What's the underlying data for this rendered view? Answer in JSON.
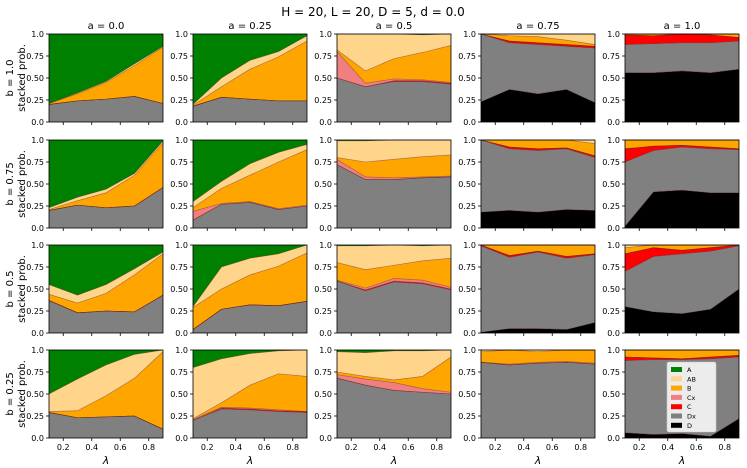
{
  "figure": {
    "suptitle": "H = 20, L = 20,     D = 5, d = 0.0",
    "col_titles": [
      "a = 0.0",
      "a = 0.25",
      "a = 0.5",
      "a = 0.75",
      "a = 1.0"
    ],
    "row_titles": [
      "b = 1.0",
      "b = 0.75",
      "b = 0.5",
      "b = 0.25"
    ],
    "ylabel": "stacked prob.",
    "xlabel": "λ",
    "xticks": [
      "0.2",
      "0.4",
      "0.6",
      "0.8"
    ],
    "yticks": [
      "0.0",
      "0.25",
      "0.50",
      "0.75",
      "1.0"
    ]
  },
  "legend": {
    "location": "bottom-right panel (b = 0.25, a = 1.0)",
    "entries": [
      {
        "label": "A",
        "color": "#008000"
      },
      {
        "label": "AB",
        "color": "#FFD48B"
      },
      {
        "label": "B",
        "color": "#FFA500"
      },
      {
        "label": "Cx",
        "color": "#F08080"
      },
      {
        "label": "C",
        "color": "#FF0000"
      },
      {
        "label": "Dx",
        "color": "#808080"
      },
      {
        "label": "D",
        "color": "#000000"
      }
    ]
  },
  "chart_data": {
    "type": "area",
    "stacking": "cumulative, bottom to top: D, Dx, C, Cx, B, AB, A",
    "x": [
      0.1,
      0.3,
      0.5,
      0.7,
      0.9
    ],
    "xlim": [
      0.1,
      0.9
    ],
    "ylim": [
      0,
      1
    ],
    "series_order": [
      "D",
      "Dx",
      "C",
      "Cx",
      "B",
      "AB",
      "A"
    ],
    "colors": {
      "A": "#008000",
      "AB": "#FFD48B",
      "B": "#FFA500",
      "Cx": "#F08080",
      "C": "#FF0000",
      "Dx": "#808080",
      "D": "#000000"
    },
    "panels": [
      {
        "row": "b = 1.0",
        "col": "a = 0.0",
        "cum": {
          "D": [
            0,
            0,
            0,
            0,
            0
          ],
          "Dx": [
            0.2,
            0.24,
            0.26,
            0.29,
            0.21
          ],
          "C": [
            0.2,
            0.24,
            0.26,
            0.29,
            0.21
          ],
          "Cx": [
            0.2,
            0.24,
            0.26,
            0.29,
            0.21
          ],
          "B": [
            0.21,
            0.32,
            0.45,
            0.64,
            0.85
          ],
          "AB": [
            0.21,
            0.33,
            0.46,
            0.66,
            0.86
          ]
        }
      },
      {
        "row": "b = 1.0",
        "col": "a = 0.25",
        "cum": {
          "D": [
            0,
            0,
            0,
            0,
            0
          ],
          "Dx": [
            0.18,
            0.28,
            0.26,
            0.24,
            0.24
          ],
          "C": [
            0.18,
            0.28,
            0.26,
            0.24,
            0.24
          ],
          "Cx": [
            0.18,
            0.28,
            0.26,
            0.24,
            0.24
          ],
          "B": [
            0.19,
            0.4,
            0.6,
            0.74,
            0.92
          ],
          "AB": [
            0.2,
            0.5,
            0.7,
            0.8,
            0.98
          ]
        }
      },
      {
        "row": "b = 1.0",
        "col": "a = 0.5",
        "cum": {
          "D": [
            0,
            0,
            0,
            0,
            0
          ],
          "Dx": [
            0.5,
            0.4,
            0.46,
            0.46,
            0.43
          ],
          "C": [
            0.5,
            0.4,
            0.47,
            0.47,
            0.44
          ],
          "Cx": [
            0.8,
            0.44,
            0.49,
            0.48,
            0.45
          ],
          "B": [
            0.82,
            0.58,
            0.72,
            0.79,
            0.87
          ],
          "AB": [
            1,
            1,
            1,
            0.99,
            1
          ]
        }
      },
      {
        "row": "b = 1.0",
        "col": "a = 0.75",
        "cum": {
          "D": [
            0.23,
            0.37,
            0.32,
            0.37,
            0.22
          ],
          "Dx": [
            1,
            0.9,
            0.88,
            0.86,
            0.84
          ],
          "C": [
            1,
            0.92,
            0.9,
            0.88,
            0.86
          ],
          "Cx": [
            1,
            0.92,
            0.9,
            0.88,
            0.86
          ],
          "B": [
            1,
            0.98,
            0.97,
            0.93,
            0.88
          ],
          "AB": [
            1,
            1,
            1,
            1,
            1
          ]
        }
      },
      {
        "row": "b = 1.0",
        "col": "a = 1.0",
        "cum": {
          "D": [
            0.56,
            0.56,
            0.58,
            0.56,
            0.6
          ],
          "Dx": [
            0.88,
            0.89,
            0.9,
            0.9,
            0.92
          ],
          "C": [
            0.99,
            0.98,
            1,
            0.99,
            0.96
          ],
          "Cx": [
            0.99,
            0.98,
            1,
            0.99,
            0.96
          ],
          "B": [
            1,
            1,
            1,
            1,
            1
          ],
          "AB": [
            1,
            1,
            1,
            1,
            1
          ]
        }
      },
      {
        "row": "b = 0.75",
        "col": "a = 0.0",
        "cum": {
          "D": [
            0,
            0,
            0,
            0,
            0
          ],
          "Dx": [
            0.2,
            0.26,
            0.23,
            0.25,
            0.46
          ],
          "C": [
            0.2,
            0.26,
            0.23,
            0.25,
            0.46
          ],
          "Cx": [
            0.2,
            0.26,
            0.23,
            0.25,
            0.46
          ],
          "B": [
            0.21,
            0.31,
            0.4,
            0.6,
            0.97
          ],
          "AB": [
            0.23,
            0.35,
            0.44,
            0.62,
            0.99
          ]
        }
      },
      {
        "row": "b = 0.75",
        "col": "a = 0.25",
        "cum": {
          "D": [
            0,
            0,
            0,
            0,
            0
          ],
          "Dx": [
            0.09,
            0.27,
            0.29,
            0.21,
            0.25
          ],
          "C": [
            0.09,
            0.27,
            0.29,
            0.21,
            0.25
          ],
          "Cx": [
            0.19,
            0.28,
            0.3,
            0.22,
            0.26
          ],
          "B": [
            0.23,
            0.45,
            0.6,
            0.75,
            0.89
          ],
          "AB": [
            0.3,
            0.53,
            0.73,
            0.86,
            0.95
          ]
        }
      },
      {
        "row": "b = 0.75",
        "col": "a = 0.5",
        "cum": {
          "D": [
            0,
            0,
            0,
            0,
            0
          ],
          "Dx": [
            0.72,
            0.55,
            0.55,
            0.57,
            0.58
          ],
          "C": [
            0.72,
            0.55,
            0.55,
            0.57,
            0.58
          ],
          "Cx": [
            0.78,
            0.58,
            0.57,
            0.58,
            0.59
          ],
          "B": [
            0.8,
            0.75,
            0.78,
            0.81,
            0.83
          ],
          "AB": [
            0.99,
            0.99,
            1,
            1,
            1
          ]
        }
      },
      {
        "row": "b = 0.75",
        "col": "a = 0.75",
        "cum": {
          "D": [
            0.18,
            0.2,
            0.18,
            0.21,
            0.2
          ],
          "Dx": [
            1,
            0.9,
            0.88,
            0.9,
            0.8
          ],
          "C": [
            1,
            0.92,
            0.9,
            0.91,
            0.82
          ],
          "Cx": [
            1,
            0.92,
            0.9,
            0.91,
            0.82
          ],
          "B": [
            1,
            1,
            1,
            1,
            0.96
          ],
          "AB": [
            1,
            1,
            1,
            1,
            1
          ]
        }
      },
      {
        "row": "b = 0.75",
        "col": "a = 1.0",
        "cum": {
          "D": [
            0.02,
            0.41,
            0.43,
            0.4,
            0.4
          ],
          "Dx": [
            0.75,
            0.88,
            0.92,
            0.9,
            0.89
          ],
          "C": [
            0.9,
            0.93,
            0.94,
            0.92,
            0.9
          ],
          "Cx": [
            0.9,
            0.93,
            0.94,
            0.92,
            0.9
          ],
          "B": [
            1,
            1,
            1,
            1,
            1
          ],
          "AB": [
            1,
            1,
            1,
            1,
            1
          ]
        }
      },
      {
        "row": "b = 0.5",
        "col": "a = 0.0",
        "cum": {
          "D": [
            0,
            0,
            0,
            0,
            0
          ],
          "Dx": [
            0.37,
            0.23,
            0.25,
            0.24,
            0.43
          ],
          "C": [
            0.37,
            0.23,
            0.25,
            0.24,
            0.43
          ],
          "Cx": [
            0.37,
            0.23,
            0.25,
            0.24,
            0.43
          ],
          "B": [
            0.44,
            0.34,
            0.45,
            0.66,
            0.9
          ],
          "AB": [
            0.55,
            0.43,
            0.55,
            0.73,
            0.92
          ]
        }
      },
      {
        "row": "b = 0.5",
        "col": "a = 0.25",
        "cum": {
          "D": [
            0,
            0,
            0,
            0,
            0
          ],
          "Dx": [
            0.04,
            0.27,
            0.32,
            0.31,
            0.36
          ],
          "C": [
            0.04,
            0.27,
            0.32,
            0.31,
            0.36
          ],
          "Cx": [
            0.04,
            0.27,
            0.32,
            0.31,
            0.36
          ],
          "B": [
            0.29,
            0.5,
            0.66,
            0.76,
            0.91
          ],
          "AB": [
            0.3,
            0.75,
            0.85,
            0.9,
            1
          ]
        }
      },
      {
        "row": "b = 0.5",
        "col": "a = 0.5",
        "cum": {
          "D": [
            0,
            0,
            0,
            0,
            0
          ],
          "Dx": [
            0.59,
            0.48,
            0.58,
            0.56,
            0.49
          ],
          "C": [
            0.59,
            0.49,
            0.59,
            0.57,
            0.5
          ],
          "Cx": [
            0.6,
            0.51,
            0.62,
            0.6,
            0.52
          ],
          "B": [
            0.8,
            0.72,
            0.77,
            0.82,
            0.85
          ],
          "AB": [
            0.99,
            0.99,
            1,
            0.99,
            1
          ]
        }
      },
      {
        "row": "b = 0.5",
        "col": "a = 0.75",
        "cum": {
          "D": [
            0.01,
            0.05,
            0.05,
            0.04,
            0.12
          ],
          "Dx": [
            0.99,
            0.86,
            0.92,
            0.85,
            0.89
          ],
          "C": [
            1,
            0.88,
            0.93,
            0.87,
            0.9
          ],
          "Cx": [
            1,
            0.88,
            0.93,
            0.87,
            0.9
          ],
          "B": [
            1,
            1,
            1,
            1,
            1
          ],
          "AB": [
            1,
            1,
            1,
            1,
            1
          ]
        }
      },
      {
        "row": "b = 0.5",
        "col": "a = 1.0",
        "cum": {
          "D": [
            0.3,
            0.24,
            0.22,
            0.27,
            0.5
          ],
          "Dx": [
            0.7,
            0.87,
            0.9,
            0.93,
            0.99
          ],
          "C": [
            0.9,
            0.97,
            0.94,
            0.97,
            1
          ],
          "Cx": [
            0.9,
            0.97,
            0.94,
            0.97,
            1
          ],
          "B": [
            0.97,
            1,
            1,
            1,
            1
          ],
          "AB": [
            1,
            1,
            1,
            1,
            1
          ]
        }
      },
      {
        "row": "b = 0.25",
        "col": "a = 0.0",
        "cum": {
          "D": [
            0,
            0,
            0,
            0,
            0
          ],
          "Dx": [
            0.29,
            0.23,
            0.24,
            0.25,
            0.1
          ],
          "C": [
            0.29,
            0.23,
            0.24,
            0.25,
            0.1
          ],
          "Cx": [
            0.29,
            0.23,
            0.24,
            0.25,
            0.1
          ],
          "B": [
            0.3,
            0.31,
            0.48,
            0.68,
            0.98
          ],
          "AB": [
            0.5,
            0.67,
            0.83,
            0.95,
            1
          ]
        }
      },
      {
        "row": "b = 0.25",
        "col": "a = 0.25",
        "cum": {
          "D": [
            0,
            0,
            0,
            0,
            0
          ],
          "Dx": [
            0.2,
            0.33,
            0.32,
            0.3,
            0.29
          ],
          "C": [
            0.2,
            0.34,
            0.33,
            0.31,
            0.3
          ],
          "Cx": [
            0.21,
            0.35,
            0.34,
            0.32,
            0.3
          ],
          "B": [
            0.22,
            0.4,
            0.6,
            0.73,
            0.7
          ],
          "AB": [
            0.8,
            0.9,
            0.96,
            0.99,
            1
          ]
        }
      },
      {
        "row": "b = 0.25",
        "col": "a = 0.5",
        "cum": {
          "D": [
            0,
            0,
            0,
            0,
            0
          ],
          "Dx": [
            0.68,
            0.6,
            0.54,
            0.52,
            0.5
          ],
          "C": [
            0.68,
            0.6,
            0.54,
            0.52,
            0.5
          ],
          "Cx": [
            0.72,
            0.67,
            0.63,
            0.56,
            0.52
          ],
          "B": [
            0.75,
            0.7,
            0.66,
            0.7,
            0.92
          ],
          "AB": [
            0.98,
            0.97,
            0.99,
            0.99,
            1
          ]
        }
      },
      {
        "row": "b = 0.25",
        "col": "a = 0.75",
        "cum": {
          "D": [
            0,
            0,
            0,
            0,
            0
          ],
          "Dx": [
            0.86,
            0.83,
            0.85,
            0.86,
            0.84
          ],
          "C": [
            0.86,
            0.83,
            0.85,
            0.86,
            0.84
          ],
          "Cx": [
            0.86,
            0.84,
            0.86,
            0.87,
            0.85
          ],
          "B": [
            0.98,
            1,
            0.98,
            1,
            1
          ],
          "AB": [
            1,
            1,
            1,
            1,
            1
          ]
        }
      },
      {
        "row": "b = 0.25",
        "col": "a = 1.0",
        "cum": {
          "D": [
            0.06,
            0.04,
            0.05,
            0.02,
            0.22
          ],
          "Dx": [
            0.88,
            0.89,
            0.89,
            0.9,
            0.92
          ],
          "C": [
            0.92,
            0.91,
            0.9,
            0.92,
            0.94
          ],
          "Cx": [
            0.92,
            0.91,
            0.9,
            0.92,
            0.94
          ],
          "B": [
            1,
            1,
            1,
            1,
            1
          ],
          "AB": [
            1,
            1,
            1,
            1,
            1
          ]
        }
      }
    ]
  }
}
